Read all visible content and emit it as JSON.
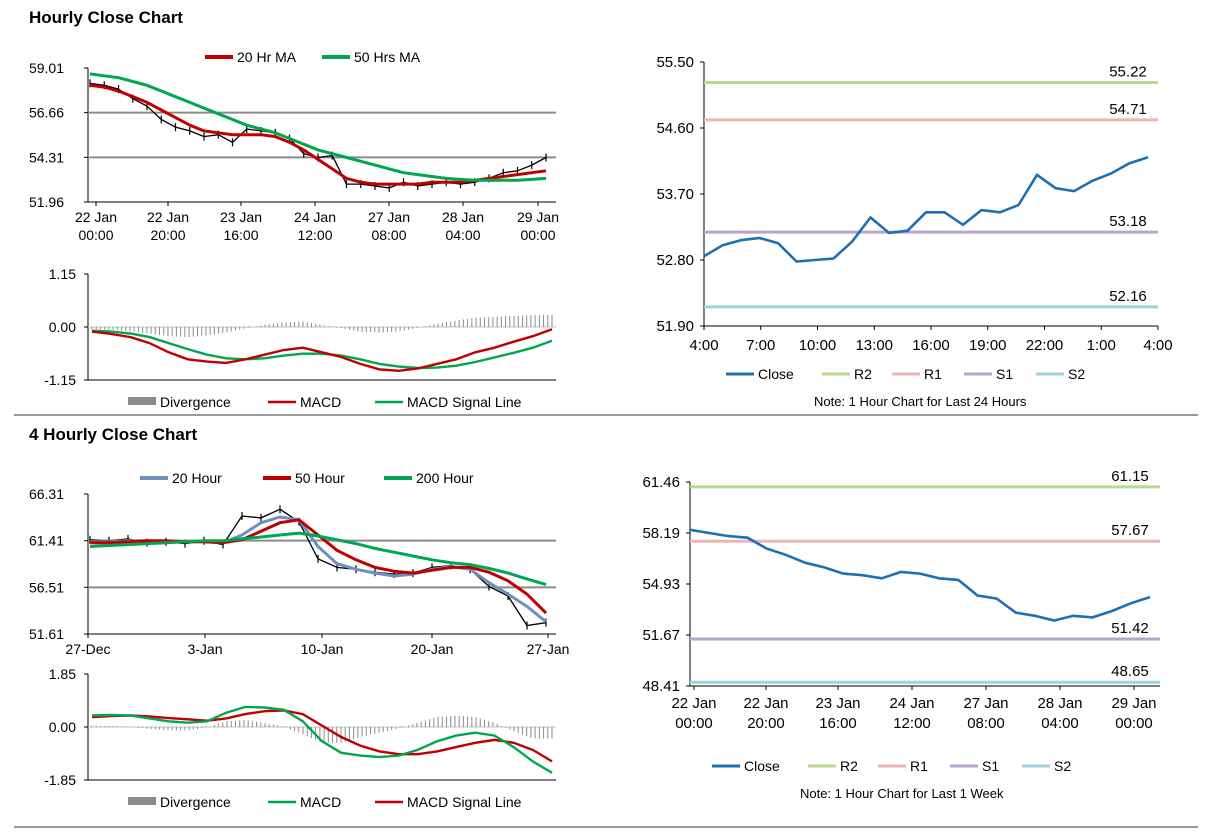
{
  "sections": {
    "hourly_title": "Hourly Close Chart",
    "four_hourly_title": "4 Hourly Close Chart"
  },
  "colors": {
    "ma_short": "#c00000",
    "ma_long": "#00a650",
    "ma_20": "#6f8fbf",
    "close_line": "#1f6fb5",
    "r2": "#b9d98c",
    "r1": "#f0b4b4",
    "s1": "#b7a4cf",
    "s2": "#9fd4df",
    "divergence": "#8c8c8c",
    "gridline": "#8c8c8c"
  },
  "chart_data": [
    {
      "id": "hourly_price",
      "type": "line",
      "legend": [
        "20 Hr MA",
        "50 Hrs MA"
      ],
      "ylim": [
        51.96,
        59.01
      ],
      "yticks": [
        "59.01",
        "56.66",
        "54.31",
        "51.96"
      ],
      "xtick_labels": [
        [
          "22 Jan",
          "00:00"
        ],
        [
          "22 Jan",
          "20:00"
        ],
        [
          "23 Jan",
          "16:00"
        ],
        [
          "24 Jan",
          "12:00"
        ],
        [
          "27 Jan",
          "08:00"
        ],
        [
          "28 Jan",
          "04:00"
        ],
        [
          "29 Jan",
          "00:00"
        ]
      ],
      "price": [
        58.2,
        58.1,
        57.9,
        57.4,
        57.0,
        56.3,
        55.9,
        55.7,
        55.4,
        55.5,
        55.1,
        55.8,
        55.7,
        55.6,
        55.3,
        54.5,
        54.3,
        54.4,
        52.9,
        52.9,
        52.8,
        52.7,
        53.0,
        52.8,
        52.9,
        53.0,
        52.9,
        53.0,
        53.2,
        53.5,
        53.6,
        53.9,
        54.3
      ],
      "ma20": [
        58.1,
        58.0,
        57.8,
        57.5,
        57.2,
        56.8,
        56.4,
        56.0,
        55.7,
        55.6,
        55.5,
        55.5,
        55.5,
        55.4,
        55.1,
        54.7,
        54.2,
        53.7,
        53.2,
        53.0,
        52.9,
        52.9,
        52.9,
        52.9,
        53.0,
        53.0,
        53.0,
        53.1,
        53.2,
        53.3,
        53.4,
        53.5,
        53.6
      ],
      "ma50": [
        58.7,
        58.6,
        58.5,
        58.3,
        58.1,
        57.8,
        57.5,
        57.2,
        56.9,
        56.6,
        56.3,
        56.0,
        55.8,
        55.6,
        55.3,
        55.0,
        54.7,
        54.5,
        54.3,
        54.1,
        53.9,
        53.7,
        53.5,
        53.4,
        53.3,
        53.2,
        53.15,
        53.1,
        53.1,
        53.1,
        53.1,
        53.15,
        53.2
      ]
    },
    {
      "id": "hourly_macd",
      "type": "line",
      "legend": [
        "Divergence",
        "MACD",
        "MACD Signal Line"
      ],
      "ylim": [
        -1.15,
        1.15
      ],
      "yticks": [
        "1.15",
        "0.00",
        "-1.15"
      ],
      "macd": [
        -0.1,
        -0.15,
        -0.22,
        -0.35,
        -0.55,
        -0.7,
        -0.75,
        -0.78,
        -0.7,
        -0.6,
        -0.5,
        -0.45,
        -0.55,
        -0.65,
        -0.8,
        -0.92,
        -0.95,
        -0.9,
        -0.8,
        -0.7,
        -0.55,
        -0.45,
        -0.32,
        -0.2,
        -0.05
      ],
      "signal": [
        -0.08,
        -0.1,
        -0.14,
        -0.22,
        -0.35,
        -0.48,
        -0.6,
        -0.68,
        -0.7,
        -0.68,
        -0.62,
        -0.58,
        -0.58,
        -0.62,
        -0.7,
        -0.8,
        -0.86,
        -0.89,
        -0.88,
        -0.84,
        -0.76,
        -0.66,
        -0.56,
        -0.45,
        -0.3
      ],
      "divergence": [
        -0.05,
        -0.06,
        -0.09,
        -0.14,
        -0.2,
        -0.22,
        -0.18,
        -0.12,
        -0.03,
        0.05,
        0.1,
        0.12,
        0.04,
        -0.03,
        -0.1,
        -0.12,
        -0.1,
        -0.02,
        0.07,
        0.14,
        0.2,
        0.22,
        0.24,
        0.26,
        0.26
      ]
    },
    {
      "id": "hourly_close",
      "type": "line",
      "series_name": "Close",
      "legend": [
        "Close",
        "R2",
        "R1",
        "S1",
        "S2"
      ],
      "note": "Note: 1 Hour Chart for Last 24 Hours",
      "ylim": [
        51.9,
        55.5
      ],
      "yticks": [
        "55.50",
        "54.60",
        "53.70",
        "52.80",
        "51.90"
      ],
      "xtick_labels": [
        "4:00",
        "7:00",
        "10:00",
        "13:00",
        "16:00",
        "19:00",
        "22:00",
        "1:00",
        "4:00"
      ],
      "values": [
        52.85,
        53.0,
        53.07,
        53.1,
        53.03,
        52.78,
        52.8,
        52.82,
        53.05,
        53.38,
        53.17,
        53.2,
        53.45,
        53.45,
        53.28,
        53.48,
        53.45,
        53.55,
        53.96,
        53.78,
        53.74,
        53.88,
        53.98,
        54.12,
        54.2
      ],
      "levels": {
        "R2": 55.22,
        "R1": 54.71,
        "S1": 53.18,
        "S2": 52.16
      },
      "level_labels": [
        "55.22",
        "54.71",
        "53.18",
        "52.16"
      ]
    },
    {
      "id": "four_hourly_price",
      "type": "line",
      "legend": [
        "20 Hour",
        "50 Hour",
        "200 Hour"
      ],
      "ylim": [
        51.61,
        66.31
      ],
      "yticks": [
        "66.31",
        "61.41",
        "56.51",
        "51.61"
      ],
      "xtick_labels": [
        "27-Dec",
        "3-Jan",
        "10-Jan",
        "20-Jan",
        "27-Jan"
      ],
      "price": [
        61.5,
        61.4,
        61.6,
        61.2,
        61.3,
        61.1,
        61.4,
        61.0,
        64.0,
        63.8,
        64.7,
        63.4,
        59.5,
        58.6,
        58.4,
        58.1,
        57.9,
        58.0,
        58.6,
        58.8,
        58.4,
        56.6,
        55.6,
        52.5,
        52.8
      ],
      "ma20": [
        61.3,
        61.3,
        61.4,
        61.4,
        61.3,
        61.3,
        61.3,
        61.2,
        62.0,
        63.3,
        63.9,
        63.6,
        60.8,
        59.0,
        58.4,
        58.0,
        57.7,
        57.9,
        58.4,
        58.7,
        58.4,
        57.0,
        55.8,
        54.5,
        52.9
      ],
      "ma50": [
        61.2,
        61.2,
        61.3,
        61.4,
        61.4,
        61.3,
        61.3,
        61.2,
        61.5,
        62.4,
        63.3,
        63.6,
        62.0,
        60.4,
        59.4,
        58.6,
        58.2,
        58.0,
        58.3,
        58.6,
        58.6,
        58.1,
        57.2,
        55.8,
        53.8
      ],
      "ma200": [
        60.8,
        60.9,
        61.0,
        61.1,
        61.2,
        61.3,
        61.4,
        61.4,
        61.6,
        61.8,
        62.0,
        62.2,
        61.9,
        61.5,
        61.1,
        60.6,
        60.2,
        59.8,
        59.4,
        59.1,
        58.9,
        58.5,
        58.0,
        57.4,
        56.8
      ]
    },
    {
      "id": "four_hourly_macd",
      "type": "line",
      "legend": [
        "Divergence",
        "MACD",
        "MACD Signal Line"
      ],
      "ylim": [
        -1.85,
        1.85
      ],
      "yticks": [
        "1.85",
        "0.00",
        "-1.85"
      ],
      "macd": [
        0.4,
        0.42,
        0.4,
        0.3,
        0.2,
        0.15,
        0.2,
        0.5,
        0.7,
        0.68,
        0.6,
        0.2,
        -0.5,
        -0.9,
        -1.0,
        -1.05,
        -1.0,
        -0.8,
        -0.5,
        -0.3,
        -0.2,
        -0.3,
        -0.7,
        -1.2,
        -1.6
      ],
      "signal": [
        0.35,
        0.38,
        0.4,
        0.37,
        0.31,
        0.27,
        0.22,
        0.3,
        0.45,
        0.55,
        0.58,
        0.45,
        0.05,
        -0.35,
        -0.65,
        -0.85,
        -0.95,
        -0.95,
        -0.85,
        -0.7,
        -0.55,
        -0.45,
        -0.55,
        -0.8,
        -1.2
      ],
      "divergence": [
        0.05,
        0.04,
        0.0,
        -0.07,
        -0.11,
        -0.12,
        -0.02,
        0.2,
        0.25,
        0.13,
        0.02,
        -0.25,
        -0.55,
        -0.55,
        -0.35,
        -0.2,
        -0.05,
        0.15,
        0.35,
        0.4,
        0.35,
        0.15,
        -0.15,
        -0.4,
        -0.4
      ]
    },
    {
      "id": "four_hourly_close",
      "type": "line",
      "series_name": "Close",
      "legend": [
        "Close",
        "R2",
        "R1",
        "S1",
        "S2"
      ],
      "note": "Note: 1 Hour Chart for Last 1 Week",
      "ylim": [
        48.41,
        61.46
      ],
      "yticks": [
        "61.46",
        "58.19",
        "54.93",
        "51.67",
        "48.41"
      ],
      "xtick_labels": [
        [
          "22 Jan",
          "00:00"
        ],
        [
          "22 Jan",
          "20:00"
        ],
        [
          "23 Jan",
          "16:00"
        ],
        [
          "24 Jan",
          "12:00"
        ],
        [
          "27 Jan",
          "08:00"
        ],
        [
          "28 Jan",
          "04:00"
        ],
        [
          "29 Jan",
          "00:00"
        ]
      ],
      "values": [
        58.4,
        58.2,
        58.0,
        57.9,
        57.2,
        56.8,
        56.3,
        56.0,
        55.6,
        55.5,
        55.3,
        55.7,
        55.6,
        55.3,
        55.2,
        54.2,
        54.0,
        53.1,
        52.9,
        52.6,
        52.9,
        52.8,
        53.2,
        53.7,
        54.1
      ],
      "levels": {
        "R2": 61.15,
        "R1": 57.67,
        "S1": 51.42,
        "S2": 48.65
      },
      "level_labels": [
        "61.15",
        "57.67",
        "51.42",
        "48.65"
      ]
    }
  ]
}
